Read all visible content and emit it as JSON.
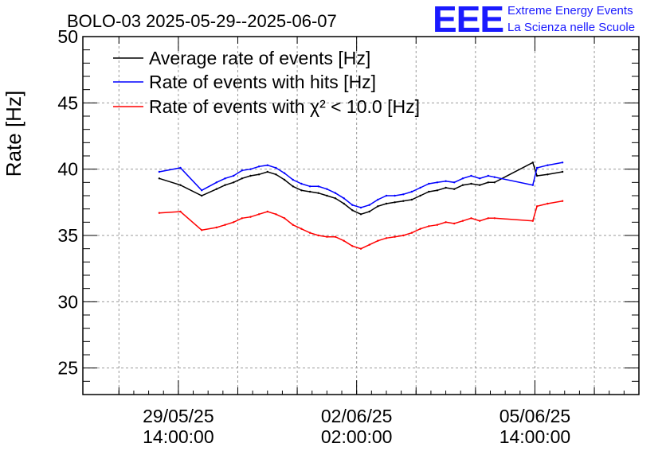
{
  "chart_data": {
    "type": "line",
    "title": "BOLO-03 2025-05-29--2025-06-07",
    "ylabel": "Rate [Hz]",
    "xlabel": "",
    "ylim": [
      23,
      50
    ],
    "yticks": [
      25,
      30,
      35,
      40,
      45,
      50
    ],
    "xticks": [
      {
        "x": 1748527200,
        "date": "29/05/25",
        "time": "14:00:00"
      },
      {
        "x": 1748829600,
        "date": "02/06/25",
        "time": "02:00:00"
      },
      {
        "x": 1749132000,
        "date": "05/06/25",
        "time": "14:00:00"
      }
    ],
    "grid": true,
    "legend_position": "top-left",
    "series": [
      {
        "name": "Average rate of events [Hz]",
        "color": "#000000",
        "points": [
          [
            1748494800,
            39.3
          ],
          [
            1748530800,
            38.8
          ],
          [
            1748566800,
            38.0
          ],
          [
            1748592000,
            38.5
          ],
          [
            1748606400,
            38.8
          ],
          [
            1748620800,
            39.0
          ],
          [
            1748635200,
            39.3
          ],
          [
            1748649600,
            39.5
          ],
          [
            1748664000,
            39.6
          ],
          [
            1748678400,
            39.8
          ],
          [
            1748692800,
            39.6
          ],
          [
            1748707200,
            39.2
          ],
          [
            1748721600,
            38.7
          ],
          [
            1748736000,
            38.4
          ],
          [
            1748750400,
            38.3
          ],
          [
            1748764800,
            38.2
          ],
          [
            1748779200,
            38.0
          ],
          [
            1748793600,
            37.8
          ],
          [
            1748808000,
            37.4
          ],
          [
            1748822400,
            36.9
          ],
          [
            1748836800,
            36.6
          ],
          [
            1748851200,
            36.8
          ],
          [
            1748865600,
            37.2
          ],
          [
            1748880000,
            37.4
          ],
          [
            1748894400,
            37.5
          ],
          [
            1748908800,
            37.6
          ],
          [
            1748923200,
            37.7
          ],
          [
            1748937600,
            38.0
          ],
          [
            1748952000,
            38.3
          ],
          [
            1748966400,
            38.4
          ],
          [
            1748980800,
            38.6
          ],
          [
            1748995200,
            38.5
          ],
          [
            1749009600,
            38.8
          ],
          [
            1749024000,
            38.9
          ],
          [
            1749038400,
            38.8
          ],
          [
            1749052800,
            39.0
          ],
          [
            1749063600,
            39.0
          ],
          [
            1749128400,
            40.5
          ],
          [
            1749135600,
            39.5
          ],
          [
            1749153600,
            39.6
          ],
          [
            1749178800,
            39.8
          ]
        ]
      },
      {
        "name": "Rate of events with hits [Hz]",
        "color": "#0000ff",
        "points": [
          [
            1748494800,
            39.8
          ],
          [
            1748530800,
            40.1
          ],
          [
            1748566800,
            38.4
          ],
          [
            1748592000,
            39.0
          ],
          [
            1748606400,
            39.3
          ],
          [
            1748620800,
            39.5
          ],
          [
            1748635200,
            39.9
          ],
          [
            1748649600,
            40.0
          ],
          [
            1748664000,
            40.2
          ],
          [
            1748678400,
            40.3
          ],
          [
            1748692800,
            40.1
          ],
          [
            1748707200,
            39.7
          ],
          [
            1748721600,
            39.2
          ],
          [
            1748736000,
            38.9
          ],
          [
            1748750400,
            38.7
          ],
          [
            1748764800,
            38.7
          ],
          [
            1748779200,
            38.5
          ],
          [
            1748793600,
            38.2
          ],
          [
            1748808000,
            37.8
          ],
          [
            1748822400,
            37.3
          ],
          [
            1748836800,
            37.1
          ],
          [
            1748851200,
            37.3
          ],
          [
            1748865600,
            37.7
          ],
          [
            1748880000,
            38.0
          ],
          [
            1748894400,
            38.0
          ],
          [
            1748908800,
            38.1
          ],
          [
            1748923200,
            38.3
          ],
          [
            1748937600,
            38.6
          ],
          [
            1748952000,
            38.9
          ],
          [
            1748966400,
            39.0
          ],
          [
            1748980800,
            39.1
          ],
          [
            1748995200,
            39.0
          ],
          [
            1749009600,
            39.3
          ],
          [
            1749024000,
            39.5
          ],
          [
            1749038400,
            39.3
          ],
          [
            1749052800,
            39.5
          ],
          [
            1749063600,
            39.4
          ],
          [
            1749128400,
            38.8
          ],
          [
            1749135600,
            40.1
          ],
          [
            1749153600,
            40.3
          ],
          [
            1749178800,
            40.5
          ]
        ]
      },
      {
        "name": "Rate of events with χ² < 10.0 [Hz]",
        "color": "#ff0000",
        "points": [
          [
            1748494800,
            36.7
          ],
          [
            1748530800,
            36.8
          ],
          [
            1748566800,
            35.4
          ],
          [
            1748592000,
            35.6
          ],
          [
            1748606400,
            35.8
          ],
          [
            1748620800,
            36.0
          ],
          [
            1748635200,
            36.3
          ],
          [
            1748649600,
            36.4
          ],
          [
            1748664000,
            36.6
          ],
          [
            1748678400,
            36.8
          ],
          [
            1748692800,
            36.6
          ],
          [
            1748707200,
            36.3
          ],
          [
            1748721600,
            35.8
          ],
          [
            1748736000,
            35.5
          ],
          [
            1748750400,
            35.2
          ],
          [
            1748764800,
            35.0
          ],
          [
            1748779200,
            34.9
          ],
          [
            1748793600,
            34.9
          ],
          [
            1748808000,
            34.6
          ],
          [
            1748822400,
            34.2
          ],
          [
            1748836800,
            34.0
          ],
          [
            1748851200,
            34.3
          ],
          [
            1748865600,
            34.6
          ],
          [
            1748880000,
            34.8
          ],
          [
            1748894400,
            34.9
          ],
          [
            1748908800,
            35.0
          ],
          [
            1748923200,
            35.2
          ],
          [
            1748937600,
            35.5
          ],
          [
            1748952000,
            35.7
          ],
          [
            1748966400,
            35.8
          ],
          [
            1748980800,
            36.0
          ],
          [
            1748995200,
            35.9
          ],
          [
            1749009600,
            36.1
          ],
          [
            1749024000,
            36.3
          ],
          [
            1749038400,
            36.1
          ],
          [
            1749052800,
            36.3
          ],
          [
            1749063600,
            36.3
          ],
          [
            1749128400,
            36.1
          ],
          [
            1749135600,
            37.2
          ],
          [
            1749153600,
            37.4
          ],
          [
            1749178800,
            37.6
          ]
        ]
      }
    ]
  },
  "logo": {
    "letters": "EEE",
    "line1": "Extreme Energy Events",
    "line2": "La Scienza nelle Scuole"
  }
}
